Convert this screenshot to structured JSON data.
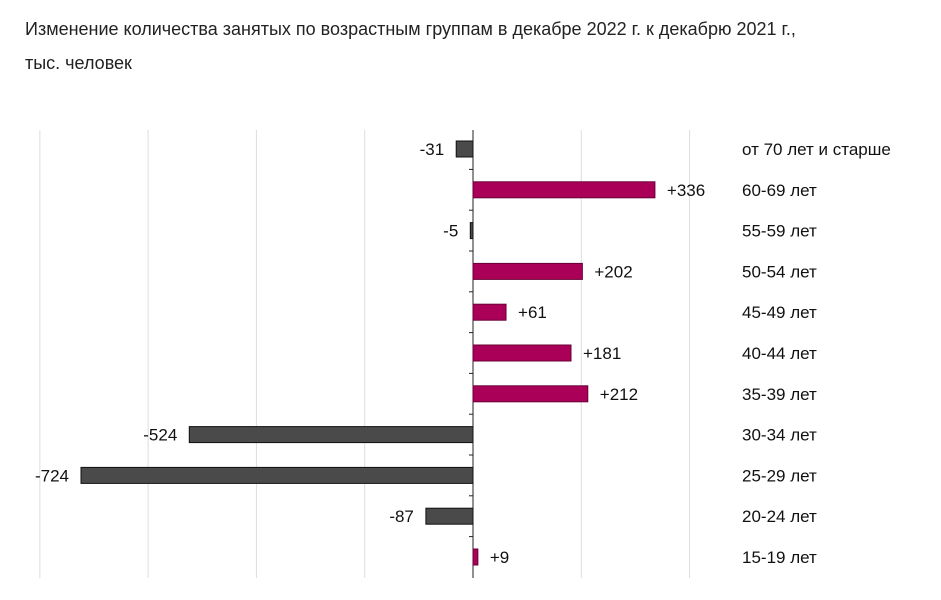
{
  "chart_data": {
    "type": "bar",
    "orientation": "horizontal",
    "title": "Изменение количества занятых по возрастным группам в декабре 2022 г. к декабрю 2021 г., тыс. человек",
    "title_line1": "Изменение количества занятых по возрастным группам в декабре 2022 г. к декабрю 2021 г.,",
    "title_line2": "тыс. человек",
    "categories": [
      "от 70 лет и старше",
      "60-69 лет",
      "55-59 лет",
      "50-54 лет",
      "45-49 лет",
      "40-44 лет",
      "35-39 лет",
      "30-34 лет",
      "25-29 лет",
      "20-24 лет",
      "15-19 лет"
    ],
    "values": [
      -31,
      336,
      -5,
      202,
      61,
      181,
      212,
      -524,
      -724,
      -87,
      9
    ],
    "value_labels": [
      "-31",
      "+336",
      "-5",
      "+202",
      "+61",
      "+181",
      "+212",
      "-524",
      "-724",
      "-87",
      "+9"
    ],
    "xlim": [
      -800,
      400
    ],
    "grid_values": [
      -800,
      -600,
      -400,
      -200,
      200,
      400
    ],
    "grid": true,
    "colors": {
      "positive": "#ab0058",
      "negative": "#4a4a4a",
      "grid": "#dddddd",
      "axis": "#222222"
    }
  }
}
